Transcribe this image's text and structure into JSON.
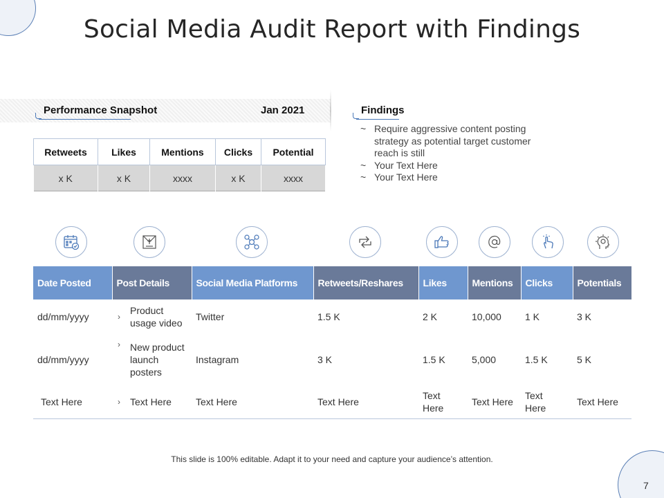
{
  "slide": {
    "title": "Social Media Audit Report with Findings",
    "footer": "This slide is 100% editable. Adapt it to your need and capture your audience’s attention.",
    "page_number": "7"
  },
  "snapshot": {
    "heading": "Performance Snapshot",
    "date": "Jan 2021",
    "headers": [
      "Retweets",
      "Likes",
      "Mentions",
      "Clicks",
      "Potential"
    ],
    "values": [
      "x K",
      "x K",
      "xxxx",
      "x K",
      "xxxx"
    ]
  },
  "findings": {
    "heading": "Findings",
    "bullet": "~",
    "items": [
      "Require aggressive content posting strategy as potential target customer reach is still",
      "Your Text Here",
      "Your Text Here"
    ]
  },
  "icons": [
    "calendar-icon",
    "envelope-icon",
    "network-icon",
    "share-arrows-icon",
    "thumbs-up-icon",
    "at-sign-icon",
    "hand-pointer-icon",
    "idea-head-icon"
  ],
  "colors": {
    "header_light": "#6f97cf",
    "header_dark": "#6a7a99",
    "accent": "#4a78b8"
  },
  "audit": {
    "headers": [
      "Date Posted",
      "Post Details",
      "Social Media Platforms",
      "Retweets/Reshares",
      "Likes",
      "Mentions",
      "Clicks",
      "Potentials"
    ],
    "rows": [
      [
        "dd/mm/yyyy",
        "Product usage video",
        "Twitter",
        "1.5 K",
        "2 K",
        "10,000",
        "1 K",
        "3 K"
      ],
      [
        "dd/mm/yyyy",
        "New product launch posters",
        "Instagram",
        "3 K",
        "1.5 K",
        "5,000",
        "1.5 K",
        "5 K"
      ],
      [
        "Text Here",
        "Text Here",
        "Text Here",
        "Text Here",
        "Text Here",
        "Text Here",
        "Text Here",
        "Text Here"
      ]
    ]
  }
}
